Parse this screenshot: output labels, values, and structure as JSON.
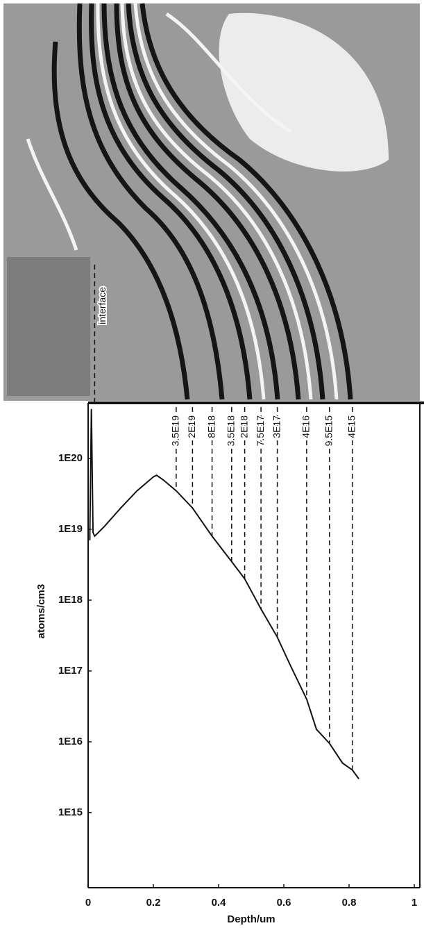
{
  "chart_data": {
    "type": "line",
    "x_label": "Depth/um",
    "y_label": "atoms/cm3",
    "xlim": [
      0,
      1
    ],
    "xticks": [
      0,
      0.2,
      0.4,
      0.6,
      0.8,
      1
    ],
    "ylim": [
      87000000000000.0,
      6.1e+20
    ],
    "log_y": true,
    "yticks": [
      {
        "value": 1000000000000000.0,
        "label": "1E15"
      },
      {
        "value": 1e+16,
        "label": "1E16"
      },
      {
        "value": 1e+17,
        "label": "1E17"
      },
      {
        "value": 1e+18,
        "label": "1E18"
      },
      {
        "value": 1e+19,
        "label": "1E19"
      },
      {
        "value": 1e+20,
        "label": "1E20"
      }
    ],
    "series": [
      {
        "color": "#111111",
        "x": [
          0.005,
          0.01,
          0.015,
          0.02,
          0.05,
          0.1,
          0.15,
          0.2,
          0.21,
          0.23,
          0.27,
          0.32,
          0.38,
          0.44,
          0.48,
          0.53,
          0.58,
          0.62,
          0.67,
          0.7,
          0.74,
          0.78,
          0.81,
          0.83
        ],
        "values": [
          7e+18,
          5e+20,
          9e+18,
          8e+18,
          1.1e+19,
          2e+19,
          3.5e+19,
          5.5e+19,
          5.8e+19,
          5e+19,
          3.5e+19,
          2e+19,
          8e+18,
          3.5e+18,
          2e+18,
          7.5e+17,
          3e+17,
          1.2e+17,
          4e+16,
          1.5e+16,
          9500000000000000.0,
          5000000000000000.0,
          4000000000000000.0,
          3000000000000000.0
        ]
      }
    ],
    "annotations": [
      {
        "x": 0.27,
        "value": 3.5e+19,
        "label": "3.5E19"
      },
      {
        "x": 0.32,
        "value": 2e+19,
        "label": "2E19"
      },
      {
        "x": 0.38,
        "value": 8e+18,
        "label": "8E18"
      },
      {
        "x": 0.44,
        "value": 3.5e+18,
        "label": "3.5E18"
      },
      {
        "x": 0.48,
        "value": 2e+18,
        "label": "2E18"
      },
      {
        "x": 0.53,
        "value": 7.5e+17,
        "label": "7.5E17"
      },
      {
        "x": 0.58,
        "value": 3e+17,
        "label": "3E17"
      },
      {
        "x": 0.67,
        "value": 4e+16,
        "label": "4E16"
      },
      {
        "x": 0.74,
        "value": 9500000000000000.0,
        "label": "9.5E15"
      },
      {
        "x": 0.81,
        "value": 4000000000000000.0,
        "label": "4E15"
      }
    ],
    "interface": {
      "x": 0.02,
      "label": "interface"
    }
  }
}
